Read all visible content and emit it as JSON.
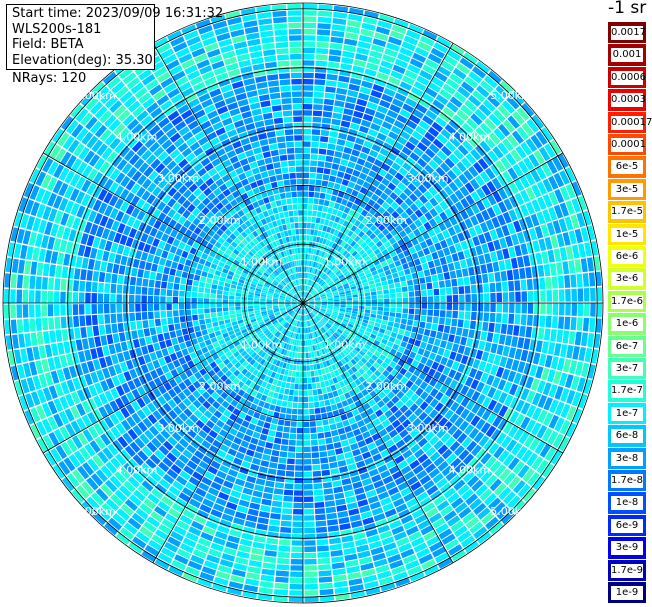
{
  "header": {
    "start_time": "Start time: 2023/09/09 16:31:32",
    "device": "WLS200s-181",
    "field": "Field: BETA",
    "elevation": "Elevation(deg): 35.30",
    "nrays": "NRays: 120"
  },
  "colorbar": {
    "title": "-1 sr",
    "entries": [
      {
        "label": "0.0017",
        "color": "#7f0000"
      },
      {
        "label": "0.001",
        "color": "#a30000"
      },
      {
        "label": "0.0006",
        "color": "#c80000"
      },
      {
        "label": "0.0003",
        "color": "#ee0000"
      },
      {
        "label": "0.00017",
        "color": "#ff1e00"
      },
      {
        "label": "0.0001",
        "color": "#ff4800"
      },
      {
        "label": "6e-5",
        "color": "#ff7200"
      },
      {
        "label": "3e-5",
        "color": "#ff9a00"
      },
      {
        "label": "1.7e-5",
        "color": "#ffc200"
      },
      {
        "label": "1e-5",
        "color": "#ffe600"
      },
      {
        "label": "6e-6",
        "color": "#f0ff0c"
      },
      {
        "label": "3e-6",
        "color": "#d0ff2c"
      },
      {
        "label": "1.7e-6",
        "color": "#aaff4e"
      },
      {
        "label": "1e-6",
        "color": "#88ff70"
      },
      {
        "label": "6e-7",
        "color": "#66ff90"
      },
      {
        "label": "3e-7",
        "color": "#40ffb6"
      },
      {
        "label": "1.7e-7",
        "color": "#1effd8"
      },
      {
        "label": "1e-7",
        "color": "#00f0ff"
      },
      {
        "label": "6e-8",
        "color": "#00c8ff"
      },
      {
        "label": "3e-8",
        "color": "#00a0ff"
      },
      {
        "label": "1.7e-8",
        "color": "#0078ff"
      },
      {
        "label": "1e-8",
        "color": "#0050ff"
      },
      {
        "label": "6e-9",
        "color": "#0028ff"
      },
      {
        "label": "3e-9",
        "color": "#0000f0"
      },
      {
        "label": "1.7e-9",
        "color": "#0000b8"
      },
      {
        "label": "1e-9",
        "color": "#00007f"
      }
    ]
  },
  "chart_data": {
    "type": "heatmap",
    "projection": "polar (PPI scan)",
    "n_rays": 120,
    "range_rings_km": [
      1.0,
      2.0,
      3.0,
      4.0,
      5.0
    ],
    "range_ring_labels": [
      "1.00km",
      "2.00km",
      "3.00km",
      "4.00km",
      "5.00km"
    ],
    "spokes_deg": [
      0,
      30,
      60,
      90,
      120,
      150,
      180,
      210,
      240,
      270,
      300,
      330
    ],
    "value_scale": "log",
    "value_range": [
      1e-09,
      0.0017
    ],
    "max_range_km": 5.1,
    "color_classes": [
      "#00c8ff",
      "#00a0ff",
      "#0078ff",
      "#0050ff",
      "#00f0ff",
      "#1effd8",
      "#40ffb6",
      "#66ff90",
      "#0028ff",
      "#88ff70"
    ]
  }
}
